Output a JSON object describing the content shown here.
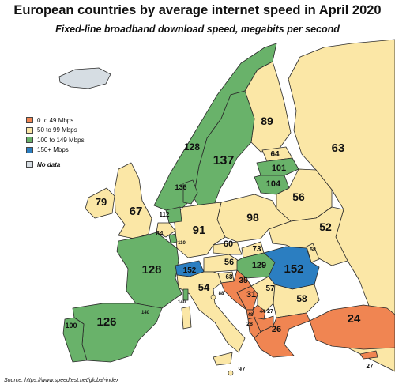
{
  "title": "European countries by average internet speed in April 2020",
  "subtitle": "Fixed-line broadband download speed, megabits per second",
  "source": "Source: https://www.speedtest.net/global-index",
  "colors": {
    "c0_49": "#f08552",
    "c50_99": "#fbe7a6",
    "c100_149": "#69b26a",
    "c150plus": "#2b7ec1",
    "nodata": "#d6dde3",
    "border": "#2a2a2a",
    "water": "#ffffff"
  },
  "legend": [
    {
      "label": "0 to 49 Mbps",
      "color": "#f08552"
    },
    {
      "label": "50 to 99 Mbps",
      "color": "#fbe7a6"
    },
    {
      "label": "100 to 149 Mbps",
      "color": "#69b26a"
    },
    {
      "label": "150+ Mbps",
      "color": "#2b7ec1"
    }
  ],
  "nodata_label": "No data",
  "values": {
    "iceland": "",
    "ireland": "79",
    "uk": "67",
    "norway": "128",
    "sweden": "137",
    "finland": "89",
    "russia": "63",
    "estonia": "64",
    "latvia": "101",
    "lithuania": "104",
    "belarus": "56",
    "ukraine": "52",
    "poland": "98",
    "germany": "91",
    "denmark": "136",
    "netherlands": "112",
    "belgium": "84",
    "luxembourg": "110",
    "france": "128",
    "spain": "126",
    "portugal": "100",
    "andorra": "140",
    "monaco": "140",
    "switzerland": "152",
    "italy": "54",
    "san_marino": "88",
    "malta": "97",
    "austria": "56",
    "czechia": "60",
    "slovakia": "73",
    "hungary": "129",
    "slovenia": "68",
    "croatia": "35",
    "bosnia": "31",
    "serbia": "57",
    "montenegro": "48",
    "kosovo": "44",
    "albania": "28",
    "north_macedonia": "27",
    "romania": "152",
    "moldova": "58",
    "bulgaria": "58",
    "greece": "26",
    "turkey": "24",
    "cyprus": "27"
  }
}
